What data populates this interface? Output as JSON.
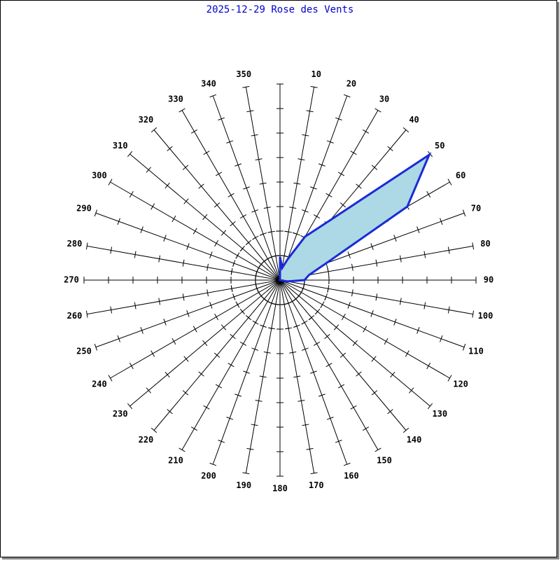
{
  "chart_data": {
    "type": "rose",
    "title": "2025-12-29 Rose des Vents",
    "title_color": "#0000cc",
    "categories": [
      null,
      "10",
      "20",
      "30",
      "40",
      "50",
      "60",
      "70",
      "80",
      "90",
      "100",
      "110",
      "120",
      "130",
      "140",
      "150",
      "160",
      "170",
      "180",
      "190",
      "200",
      "210",
      "220",
      "230",
      "240",
      "250",
      "260",
      "270",
      "280",
      "290",
      "300",
      "310",
      "320",
      "330",
      "340",
      "350"
    ],
    "values": [
      0.95,
      0.5,
      0.9,
      2.05,
      3.2,
      7.95,
      6,
      2,
      1.2,
      1,
      0.3,
      0,
      0,
      0,
      0,
      0,
      0,
      0,
      0,
      0,
      0,
      0,
      0,
      0,
      0,
      0,
      0,
      0,
      0,
      0,
      0,
      0,
      0,
      0,
      0,
      0
    ],
    "color": "#1a2bd6",
    "fill": "#add8e6",
    "rlim": [
      0,
      8
    ],
    "rticks": [
      1,
      2,
      3,
      4,
      5,
      6,
      7,
      8
    ],
    "solid_rings": [
      1
    ],
    "dashed_rings": [
      2
    ]
  }
}
